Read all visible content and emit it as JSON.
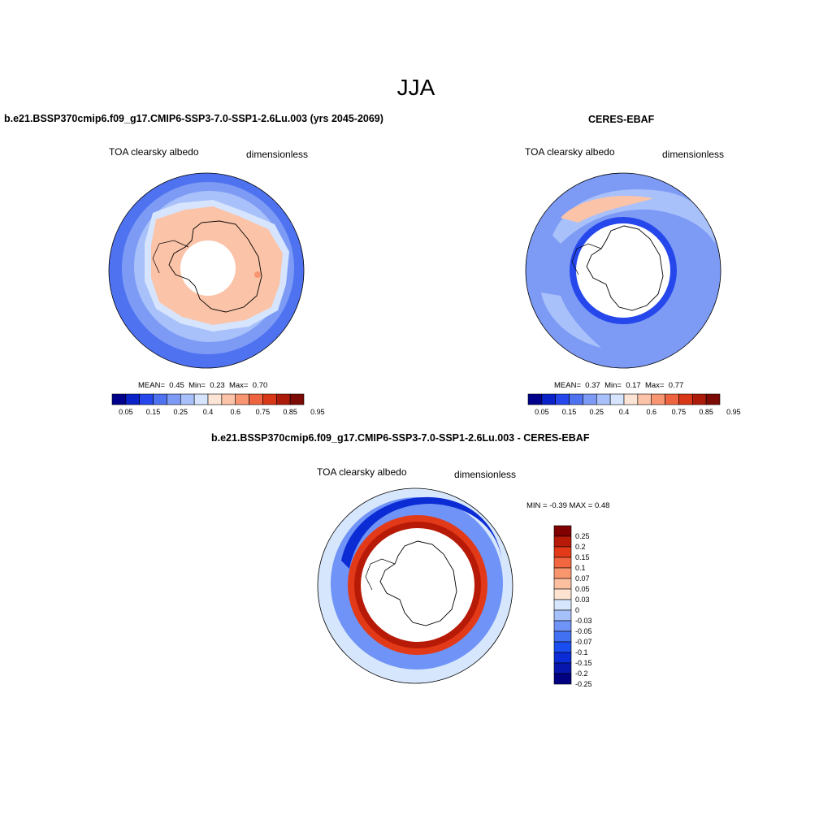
{
  "page": {
    "title": "JJA"
  },
  "panels": [
    {
      "title": "b.e21.BSSP370cmip6.f09_g17.CMIP6-SSP3-7.0-SSP1-2.6Lu.003 (yrs 2045-2069)",
      "variable": "TOA clearsky albedo",
      "units": "dimensionless",
      "stats": {
        "mean_label": "MEAN=",
        "mean": "0.45",
        "min_label": "Min=",
        "min": "0.23",
        "max_label": "Max=",
        "max": "0.70"
      }
    },
    {
      "title": "CERES-EBAF",
      "variable": "TOA clearsky albedo",
      "units": "dimensionless",
      "stats": {
        "mean_label": "MEAN=",
        "mean": "0.37",
        "min_label": "Min=",
        "min": "0.17",
        "max_label": "Max=",
        "max": "0.77"
      }
    },
    {
      "title": "b.e21.BSSP370cmip6.f09_g17.CMIP6-SSP3-7.0-SSP1-2.6Lu.003 - CERES-EBAF",
      "variable": "TOA clearsky albedo",
      "units": "dimensionless",
      "range_text": "MIN =  -0.39 MAX =   0.48"
    }
  ],
  "colors": {
    "abs_scale": [
      "#00008b",
      "#0a22c8",
      "#2547eb",
      "#4f72f0",
      "#7d9bf5",
      "#a9c1fa",
      "#d6e5fd",
      "#fde5d6",
      "#fbc3a8",
      "#f79670",
      "#ee6440",
      "#d93818",
      "#ad1c0b",
      "#7d0b05"
    ],
    "diff_scale": [
      "#000080",
      "#0717ad",
      "#0b2bd5",
      "#1a4df0",
      "#4270f2",
      "#6f93f6",
      "#a6c0fa",
      "#d6e6fc",
      "#fde3d0",
      "#fcc0a0",
      "#f9966e",
      "#f26740",
      "#e23a18",
      "#b81a08",
      "#800000"
    ]
  },
  "chart_data": [
    {
      "type": "heatmap",
      "title": "b.e21.BSSP370cmip6.f09_g17.CMIP6-SSP3-7.0-SSP1-2.6Lu.003 (yrs 2045-2069)",
      "projection": "south-polar stereographic",
      "variable": "TOA clearsky albedo",
      "units": "dimensionless",
      "mean": 0.45,
      "min": 0.23,
      "max": 0.7,
      "colorbar": {
        "orientation": "horizontal",
        "tick_labels": [
          "0.05",
          "0.15",
          "0.25",
          "0.4",
          "0.6",
          "0.75",
          "0.85",
          "0.95"
        ]
      }
    },
    {
      "type": "heatmap",
      "title": "CERES-EBAF",
      "projection": "south-polar stereographic",
      "variable": "TOA clearsky albedo",
      "units": "dimensionless",
      "mean": 0.37,
      "min": 0.17,
      "max": 0.77,
      "colorbar": {
        "orientation": "horizontal",
        "tick_labels": [
          "0.05",
          "0.15",
          "0.25",
          "0.4",
          "0.6",
          "0.75",
          "0.85",
          "0.95"
        ]
      }
    },
    {
      "type": "heatmap",
      "title": "b.e21.BSSP370cmip6.f09_g17.CMIP6-SSP3-7.0-SSP1-2.6Lu.003 - CERES-EBAF",
      "projection": "south-polar stereographic",
      "variable": "TOA clearsky albedo",
      "units": "dimensionless",
      "min": -0.39,
      "max": 0.48,
      "colorbar": {
        "orientation": "vertical",
        "tick_labels": [
          "0.25",
          "0.2",
          "0.15",
          "0.1",
          "0.07",
          "0.05",
          "0.03",
          "0",
          "-0.03",
          "-0.05",
          "-0.07",
          "-0.1",
          "-0.15",
          "-0.2",
          "-0.25"
        ]
      }
    }
  ]
}
